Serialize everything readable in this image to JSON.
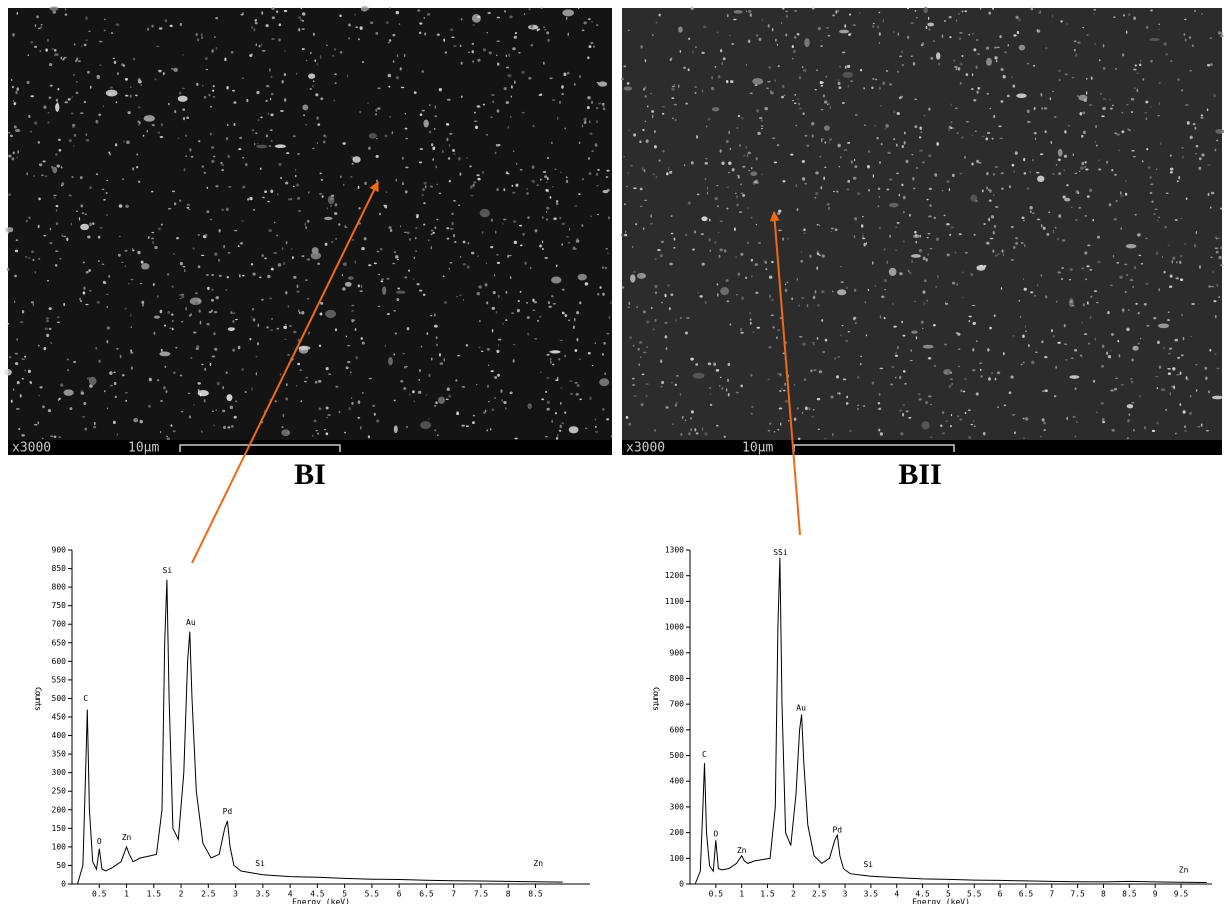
{
  "images": [
    {
      "label": "BI",
      "magnification": "x3000",
      "scale": "10µm"
    },
    {
      "label": "BII",
      "magnification": "x3000",
      "scale": "10µm"
    }
  ],
  "chart_data": [
    {
      "type": "line",
      "ylabel": "Counts",
      "xlabel": "Energy (keV)",
      "color": "#000000",
      "x": [
        0.1,
        0.2,
        0.25,
        0.28,
        0.32,
        0.38,
        0.45,
        0.5,
        0.55,
        0.62,
        0.75,
        0.9,
        1.0,
        1.05,
        1.12,
        1.25,
        1.4,
        1.55,
        1.65,
        1.7,
        1.74,
        1.78,
        1.85,
        1.95,
        2.05,
        2.12,
        2.16,
        2.2,
        2.28,
        2.4,
        2.55,
        2.7,
        2.8,
        2.85,
        2.9,
        2.97,
        3.1,
        3.3,
        3.5,
        4,
        4.5,
        5,
        5.5,
        6,
        6.5,
        7,
        7.5,
        8,
        8.5,
        9
      ],
      "values": [
        0,
        50,
        300,
        470,
        200,
        60,
        40,
        95,
        40,
        35,
        45,
        60,
        100,
        80,
        60,
        70,
        75,
        80,
        200,
        650,
        820,
        500,
        150,
        120,
        300,
        600,
        680,
        500,
        250,
        110,
        70,
        80,
        150,
        170,
        100,
        50,
        35,
        30,
        25,
        20,
        18,
        15,
        13,
        12,
        10,
        9,
        8,
        7,
        6,
        5
      ],
      "xlim": [
        0,
        9.5
      ],
      "xticks": [
        0.5,
        1,
        1.5,
        2,
        2.5,
        3,
        3.5,
        4,
        4.5,
        5,
        5.5,
        6,
        6.5,
        7,
        7.5,
        8,
        8.5
      ],
      "ylim": [
        0,
        900
      ],
      "yticks": [
        0,
        50,
        100,
        150,
        200,
        250,
        300,
        350,
        400,
        450,
        500,
        550,
        600,
        650,
        700,
        750,
        800,
        850,
        900
      ],
      "annotations": [
        {
          "text": "C",
          "x": 0.25,
          "y": 500
        },
        {
          "text": "O",
          "x": 0.5,
          "y": 115
        },
        {
          "text": "Zn",
          "x": 1.0,
          "y": 125
        },
        {
          "text": "Si",
          "x": 1.75,
          "y": 845
        },
        {
          "text": "Au",
          "x": 2.18,
          "y": 705
        },
        {
          "text": "Pd",
          "x": 2.85,
          "y": 195
        },
        {
          "text": "Si",
          "x": 3.45,
          "y": 55
        },
        {
          "text": "Zn",
          "x": 8.55,
          "y": 55
        }
      ]
    },
    {
      "type": "line",
      "ylabel": "Counts",
      "xlabel": "Energy (keV)",
      "color": "#000000",
      "x": [
        0.1,
        0.2,
        0.25,
        0.28,
        0.32,
        0.38,
        0.45,
        0.5,
        0.55,
        0.62,
        0.75,
        0.9,
        1.0,
        1.05,
        1.12,
        1.25,
        1.4,
        1.55,
        1.65,
        1.7,
        1.74,
        1.78,
        1.85,
        1.95,
        2.05,
        2.12,
        2.16,
        2.2,
        2.28,
        2.4,
        2.55,
        2.7,
        2.8,
        2.85,
        2.9,
        2.97,
        3.1,
        3.3,
        3.5,
        4,
        4.5,
        5,
        5.5,
        6,
        6.5,
        7,
        7.5,
        8,
        8.5,
        9,
        9.5,
        10
      ],
      "values": [
        0,
        50,
        300,
        470,
        200,
        70,
        50,
        170,
        60,
        55,
        60,
        80,
        110,
        90,
        80,
        90,
        95,
        100,
        300,
        1000,
        1270,
        700,
        200,
        150,
        350,
        600,
        660,
        480,
        230,
        110,
        80,
        100,
        170,
        190,
        110,
        60,
        40,
        35,
        30,
        25,
        20,
        18,
        15,
        14,
        12,
        10,
        9,
        8,
        10,
        8,
        7,
        6
      ],
      "xlim": [
        0,
        10.1
      ],
      "xticks": [
        0.5,
        1,
        1.5,
        2,
        2.5,
        3,
        3.5,
        4,
        4.5,
        5,
        5.5,
        6,
        6.5,
        7,
        7.5,
        8,
        8.5,
        9,
        9.5
      ],
      "ylim": [
        0,
        1300
      ],
      "yticks": [
        0,
        100,
        200,
        300,
        400,
        500,
        600,
        700,
        800,
        900,
        1000,
        1100,
        1200,
        1300
      ],
      "annotations": [
        {
          "text": "C",
          "x": 0.28,
          "y": 505
        },
        {
          "text": "O",
          "x": 0.5,
          "y": 195
        },
        {
          "text": "Zn",
          "x": 1.0,
          "y": 130
        },
        {
          "text": "SSi",
          "x": 1.75,
          "y": 1290
        },
        {
          "text": "Au",
          "x": 2.15,
          "y": 685
        },
        {
          "text": "Pd",
          "x": 2.85,
          "y": 210
        },
        {
          "text": "Si",
          "x": 3.45,
          "y": 75
        },
        {
          "text": "Zn",
          "x": 9.55,
          "y": 55
        }
      ]
    }
  ]
}
